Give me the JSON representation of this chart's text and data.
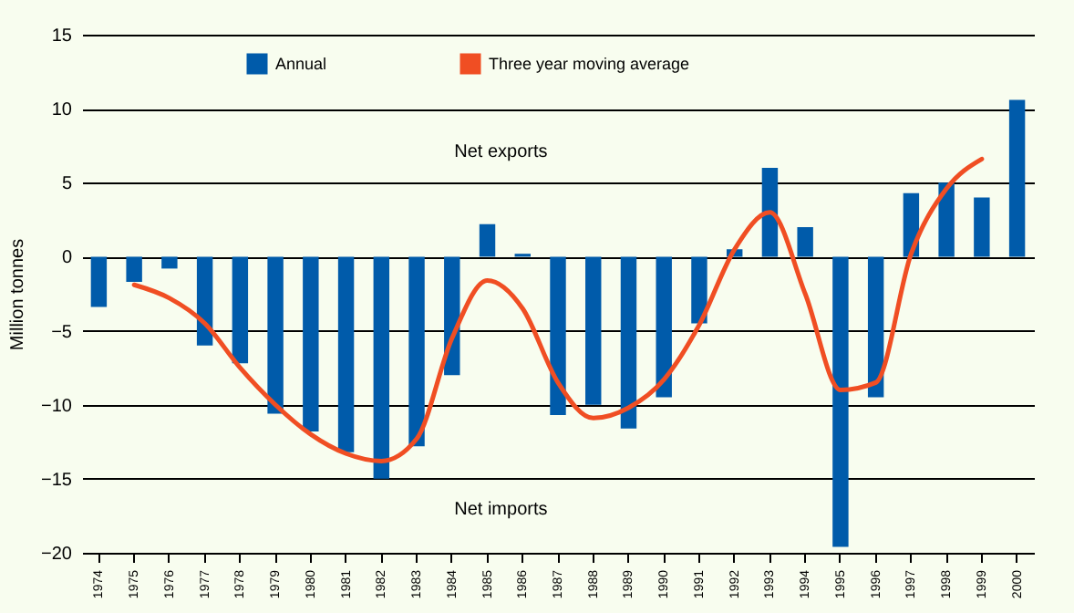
{
  "chart_data": {
    "type": "bar",
    "ylabel": "Million tonnes",
    "categories": [
      "1974",
      "1975",
      "1976",
      "1977",
      "1978",
      "1979",
      "1980",
      "1981",
      "1982",
      "1983",
      "1984",
      "1985",
      "1986",
      "1987",
      "1988",
      "1989",
      "1990",
      "1991",
      "1992",
      "1993",
      "1994",
      "1995",
      "1996",
      "1997",
      "1998",
      "1999",
      "2000"
    ],
    "series": [
      {
        "name": "Annual",
        "color": "#005baa",
        "values": [
          -3.4,
          -1.7,
          -0.8,
          -6,
          -7.2,
          -10.6,
          -11.8,
          -13.2,
          -15,
          -12.8,
          -8,
          2.2,
          0.2,
          -10.7,
          -10,
          -11.6,
          -9.5,
          -4.5,
          0.5,
          6,
          2,
          -19.6,
          -9.5,
          4.3,
          5,
          4,
          10.6
        ]
      },
      {
        "name": "Three year moving average",
        "type": "line",
        "color": "#f04e23",
        "values": [
          null,
          -1.9,
          -2.8,
          -4.5,
          -7.5,
          -10,
          -12,
          -13.3,
          -13.8,
          -12.3,
          -5.5,
          -1.6,
          -3.5,
          -8.5,
          -10.9,
          -10.2,
          -8.3,
          -4.6,
          0.5,
          3,
          -2.5,
          -9,
          -8.5,
          0.2,
          4.6,
          6.6,
          null
        ]
      }
    ],
    "ylim": [
      -20,
      15
    ],
    "yticks": [
      -20,
      -15,
      -10,
      -5,
      0,
      5,
      10,
      15
    ],
    "grid": "y",
    "legend": "top",
    "annotations": [
      "Net exports",
      "Net imports"
    ]
  }
}
